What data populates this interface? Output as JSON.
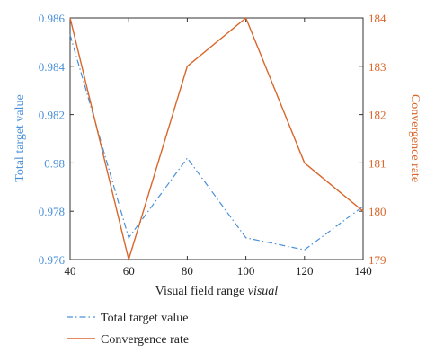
{
  "chart_data": {
    "type": "line",
    "x": [
      40,
      60,
      80,
      100,
      120,
      140
    ],
    "xlabel": "Visual field range",
    "xlabel_italic": "visual",
    "xlim": [
      40,
      140
    ],
    "x_ticks": [
      40,
      60,
      80,
      100,
      120,
      140
    ],
    "series": [
      {
        "name": "Total target value",
        "axis": "left",
        "color": "#4a90d9",
        "style": "dash-dot",
        "values": [
          0.9853,
          0.9769,
          0.9802,
          0.9769,
          0.9764,
          0.9782
        ]
      },
      {
        "name": "Convergence rate",
        "axis": "right",
        "color": "#d9662a",
        "style": "solid",
        "values": [
          184,
          179,
          183,
          184,
          181,
          180
        ]
      }
    ],
    "y_left": {
      "label": "Total target value",
      "ylim": [
        0.976,
        0.986
      ],
      "ticks": [
        0.976,
        0.978,
        0.98,
        0.982,
        0.984,
        0.986
      ],
      "tick_labels": [
        "0.976",
        "0.978",
        "0.98",
        "0.982",
        "0.984",
        "0.986"
      ],
      "color": "#4a90d9"
    },
    "y_right": {
      "label": "Convergence rate",
      "ylim": [
        179,
        184
      ],
      "ticks": [
        179,
        180,
        181,
        182,
        183,
        184
      ],
      "color": "#d9662a"
    },
    "grid": false,
    "legend_position": "bottom"
  }
}
